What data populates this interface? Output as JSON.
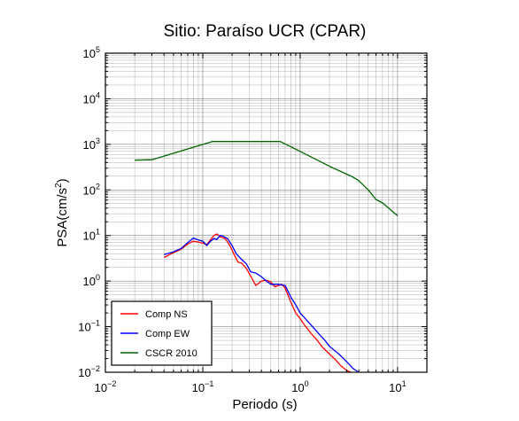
{
  "chart_data": {
    "type": "line",
    "title": "Sitio: Paraíso UCR (CPAR)",
    "xlabel": "Periodo (s)",
    "ylabel_main": "PSA(cm/s",
    "ylabel_sup": "2",
    "ylabel_close": ")",
    "x_scale": "log",
    "y_scale": "log",
    "xlim": [
      0.01,
      20
    ],
    "ylim": [
      0.01,
      100000
    ],
    "grid": true,
    "legend_position": "bottom-left",
    "x_ticks": [
      {
        "value": 0.01,
        "base": "10",
        "exp": "−2"
      },
      {
        "value": 0.1,
        "base": "10",
        "exp": "−1"
      },
      {
        "value": 1,
        "base": "10",
        "exp": "0"
      },
      {
        "value": 10,
        "base": "10",
        "exp": "1"
      }
    ],
    "y_ticks": [
      {
        "value": 0.01,
        "base": "10",
        "exp": "−2"
      },
      {
        "value": 0.1,
        "base": "10",
        "exp": "−1"
      },
      {
        "value": 1,
        "base": "10",
        "exp": "0"
      },
      {
        "value": 10,
        "base": "10",
        "exp": "1"
      },
      {
        "value": 100,
        "base": "10",
        "exp": "2"
      },
      {
        "value": 1000,
        "base": "10",
        "exp": "3"
      },
      {
        "value": 10000,
        "base": "10",
        "exp": "4"
      },
      {
        "value": 100000,
        "base": "10",
        "exp": "5"
      }
    ],
    "series": [
      {
        "name": "Comp NS",
        "color": "#ff0000",
        "points": [
          [
            0.04,
            3.3
          ],
          [
            0.05,
            4.2
          ],
          [
            0.06,
            5.0
          ],
          [
            0.07,
            6.5
          ],
          [
            0.08,
            7.5
          ],
          [
            0.09,
            7.2
          ],
          [
            0.1,
            6.8
          ],
          [
            0.11,
            6.3
          ],
          [
            0.12,
            8.0
          ],
          [
            0.13,
            10.0
          ],
          [
            0.14,
            10.8
          ],
          [
            0.15,
            9.5
          ],
          [
            0.17,
            8.5
          ],
          [
            0.19,
            6.0
          ],
          [
            0.21,
            3.8
          ],
          [
            0.23,
            2.6
          ],
          [
            0.25,
            2.5
          ],
          [
            0.28,
            1.9
          ],
          [
            0.31,
            1.3
          ],
          [
            0.35,
            0.8
          ],
          [
            0.4,
            1.0
          ],
          [
            0.45,
            1.05
          ],
          [
            0.5,
            0.95
          ],
          [
            0.55,
            0.75
          ],
          [
            0.6,
            0.8
          ],
          [
            0.65,
            0.85
          ],
          [
            0.7,
            0.7
          ],
          [
            0.8,
            0.35
          ],
          [
            0.9,
            0.2
          ],
          [
            1.0,
            0.15
          ],
          [
            1.1,
            0.11
          ],
          [
            1.3,
            0.07
          ],
          [
            1.5,
            0.05
          ],
          [
            1.7,
            0.035
          ],
          [
            2.0,
            0.025
          ],
          [
            2.3,
            0.019
          ],
          [
            2.6,
            0.014
          ],
          [
            3.0,
            0.011
          ],
          [
            3.3,
            0.01
          ]
        ]
      },
      {
        "name": "Comp EW",
        "color": "#0000ff",
        "points": [
          [
            0.04,
            3.8
          ],
          [
            0.05,
            4.4
          ],
          [
            0.06,
            5.2
          ],
          [
            0.07,
            7.0
          ],
          [
            0.08,
            8.8
          ],
          [
            0.09,
            8.0
          ],
          [
            0.1,
            7.5
          ],
          [
            0.11,
            6.0
          ],
          [
            0.12,
            7.5
          ],
          [
            0.13,
            8.5
          ],
          [
            0.14,
            8.2
          ],
          [
            0.15,
            10.0
          ],
          [
            0.16,
            9.8
          ],
          [
            0.18,
            8.5
          ],
          [
            0.2,
            6.0
          ],
          [
            0.22,
            4.0
          ],
          [
            0.25,
            3.0
          ],
          [
            0.28,
            2.4
          ],
          [
            0.31,
            1.6
          ],
          [
            0.35,
            1.5
          ],
          [
            0.4,
            1.25
          ],
          [
            0.45,
            1.0
          ],
          [
            0.5,
            0.85
          ],
          [
            0.6,
            0.85
          ],
          [
            0.7,
            0.8
          ],
          [
            0.8,
            0.45
          ],
          [
            0.9,
            0.3
          ],
          [
            1.0,
            0.2
          ],
          [
            1.2,
            0.13
          ],
          [
            1.4,
            0.09
          ],
          [
            1.6,
            0.065
          ],
          [
            1.8,
            0.05
          ],
          [
            2.0,
            0.037
          ],
          [
            2.5,
            0.025
          ],
          [
            3.0,
            0.017
          ],
          [
            3.5,
            0.012
          ],
          [
            4.0,
            0.01
          ]
        ]
      },
      {
        "name": "CSCR 2010",
        "color": "#006400",
        "points": [
          [
            0.02,
            450
          ],
          [
            0.03,
            460
          ],
          [
            0.125,
            1150
          ],
          [
            0.625,
            1150
          ],
          [
            1.0,
            700
          ],
          [
            2.0,
            330
          ],
          [
            3.5,
            190
          ],
          [
            4.0,
            160
          ],
          [
            5.0,
            100
          ],
          [
            6.0,
            62
          ],
          [
            7.0,
            52
          ],
          [
            10.0,
            27
          ]
        ]
      }
    ]
  }
}
